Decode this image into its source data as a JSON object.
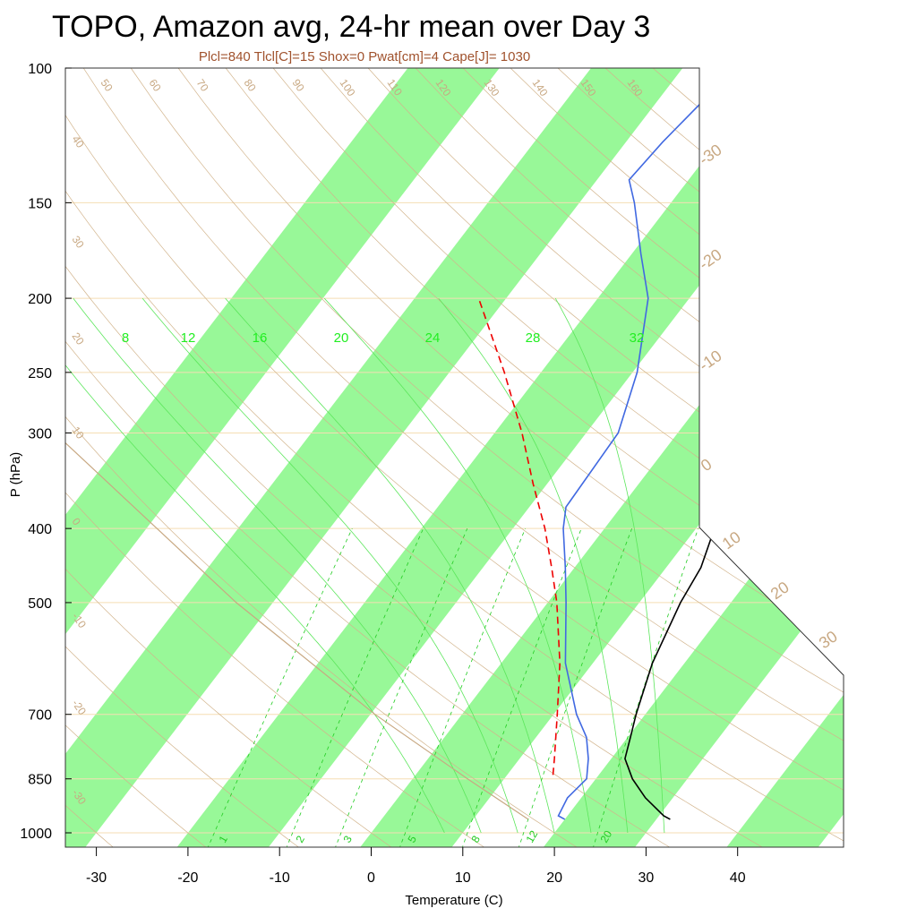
{
  "title": "TOPO, Amazon avg, 24-hr mean over Day 3",
  "subtitle": "Plcl=840 Tlcl[C]=15 Shox=0 Pwat[cm]=4 Cape[J]= 1030",
  "chart_data": {
    "type": "skew-t",
    "xlabel": "Temperature (C)",
    "ylabel": "P (hPa)",
    "y_scale": "log",
    "ylim": [
      1050,
      100
    ],
    "xlim_at_surface": [
      -33.5,
      49
    ],
    "skew_degrees_per_decade_pressure": 64,
    "y_ticks": [
      100,
      150,
      200,
      250,
      300,
      400,
      500,
      700,
      850,
      1000
    ],
    "x_ticks": [
      -30,
      -20,
      -10,
      0,
      10,
      20,
      30,
      40
    ],
    "isotherm_band_color": "#98f898",
    "isotherm_bands_start": [
      -60,
      -40,
      -20,
      0,
      20,
      40,
      60,
      80
    ],
    "isotherm_band_width": 10,
    "isobar_color": "#f5deb3",
    "dry_adiabat_color": "#d2b48c",
    "dry_adiabat_labels": [
      "50",
      "60",
      "70",
      "80",
      "90",
      "100",
      "110",
      "120",
      "130",
      "140",
      "150",
      "160"
    ],
    "dry_adiabat_left_labels": [
      "40",
      "30",
      "20",
      "10",
      "0",
      "-10",
      "-20",
      "-30"
    ],
    "moist_adiabat_color": "#5ce65c",
    "moist_adiabat_labels": [
      "8",
      "12",
      "16",
      "20",
      "24",
      "28",
      "32"
    ],
    "mixing_ratio_color": "#22cc22",
    "mixing_ratio_labels": [
      "1",
      "2",
      "3",
      "5",
      "8",
      "12",
      "20"
    ],
    "edge_temperature_labels": [
      "-30",
      "-20",
      "-10",
      "0",
      "10",
      "20",
      "30"
    ],
    "series": [
      {
        "name": "",
        "role": "temperature",
        "color": "#000000",
        "points": [
          {
            "p": 960,
            "t": 31.5
          },
          {
            "p": 950,
            "t": 30.5
          },
          {
            "p": 900,
            "t": 27.0
          },
          {
            "p": 850,
            "t": 24.0
          },
          {
            "p": 800,
            "t": 21.5
          },
          {
            "p": 750,
            "t": 20.3
          },
          {
            "p": 700,
            "t": 19.0
          },
          {
            "p": 600,
            "t": 16.5
          },
          {
            "p": 500,
            "t": 14.5
          },
          {
            "p": 450,
            "t": 13.8
          },
          {
            "p": 400,
            "t": 12.0
          },
          {
            "p": 300,
            "t": 4.0
          },
          {
            "p": 250,
            "t": -2.0
          },
          {
            "p": 200,
            "t": -6.5
          },
          {
            "p": 175,
            "t": -9.5
          },
          {
            "p": 150,
            "t": -12.5
          },
          {
            "p": 140,
            "t": -14.0
          },
          {
            "p": 125,
            "t": -15.8
          },
          {
            "p": 110,
            "t": -17.0
          },
          {
            "p": 100,
            "t": -18.0
          }
        ]
      },
      {
        "name": "",
        "role": "dewpoint",
        "color": "#4169e1",
        "points": [
          {
            "p": 960,
            "t": 20.0
          },
          {
            "p": 950,
            "t": 19.0
          },
          {
            "p": 900,
            "t": 18.5
          },
          {
            "p": 850,
            "t": 19.0
          },
          {
            "p": 800,
            "t": 17.5
          },
          {
            "p": 750,
            "t": 15.5
          },
          {
            "p": 700,
            "t": 12.5
          },
          {
            "p": 600,
            "t": 7.0
          },
          {
            "p": 500,
            "t": 2.0
          },
          {
            "p": 450,
            "t": -1.0
          },
          {
            "p": 400,
            "t": -4.5
          },
          {
            "p": 375,
            "t": -6.0
          },
          {
            "p": 300,
            "t": -6.5
          },
          {
            "p": 250,
            "t": -9.5
          },
          {
            "p": 200,
            "t": -14.5
          },
          {
            "p": 175,
            "t": -19.0
          },
          {
            "p": 150,
            "t": -24.0
          },
          {
            "p": 140,
            "t": -26.5
          },
          {
            "p": 125,
            "t": -26.0
          },
          {
            "p": 110,
            "t": -25.0
          },
          {
            "p": 100,
            "t": -24.5
          }
        ]
      },
      {
        "name": "",
        "role": "parcel",
        "color": "#ee0000",
        "dashed": true,
        "points": [
          {
            "p": 840,
            "t": 15.0
          },
          {
            "p": 800,
            "t": 13.8
          },
          {
            "p": 700,
            "t": 10.4
          },
          {
            "p": 600,
            "t": 6.4
          },
          {
            "p": 500,
            "t": 1.0
          },
          {
            "p": 450,
            "t": -2.5
          },
          {
            "p": 400,
            "t": -6.5
          },
          {
            "p": 350,
            "t": -11.5
          },
          {
            "p": 300,
            "t": -17.0
          },
          {
            "p": 250,
            "t": -24.0
          },
          {
            "p": 200,
            "t": -33.0
          }
        ]
      },
      {
        "name": "",
        "role": "lifted-dry",
        "color": "#c8a882",
        "points": [
          {
            "p": 960,
            "t": 16.0
          },
          {
            "p": 850,
            "t": 6.0
          },
          {
            "p": 700,
            "t": -9.5
          },
          {
            "p": 500,
            "t": -34.0
          },
          {
            "p": 300,
            "t": -68.0
          },
          {
            "p": 228,
            "t": -86.5
          }
        ]
      }
    ]
  }
}
